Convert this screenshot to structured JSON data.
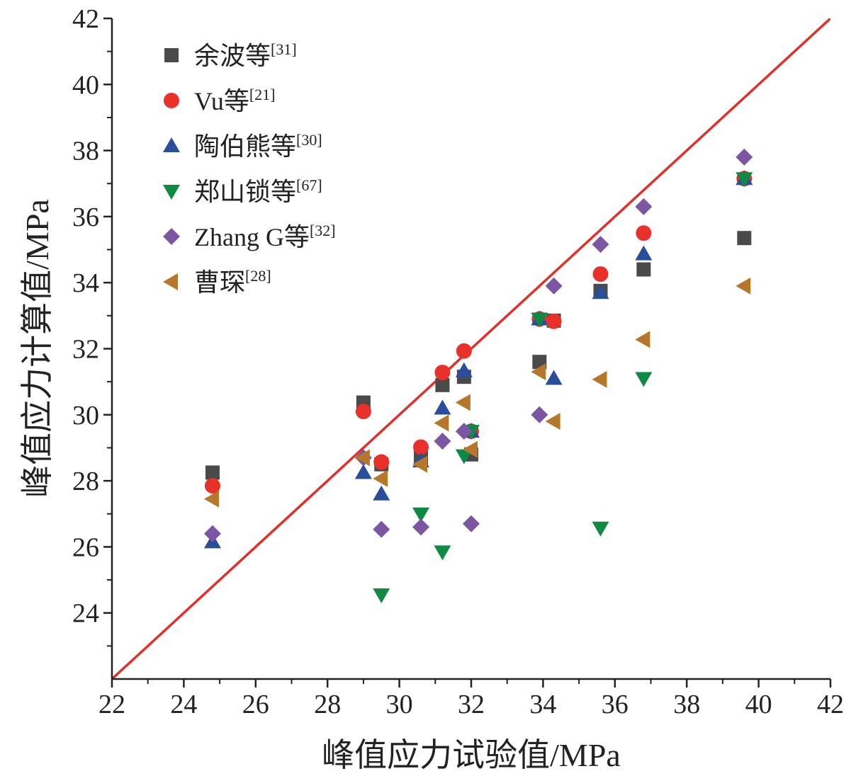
{
  "chart_data": {
    "type": "scatter",
    "xlabel": "峰值应力试验值/MPa",
    "ylabel": "峰值应力计算值/MPa",
    "xlim": [
      22,
      42
    ],
    "ylim": [
      22,
      42
    ],
    "xticks": [
      22,
      24,
      26,
      28,
      30,
      32,
      34,
      36,
      38,
      40,
      42
    ],
    "yticks": [
      24,
      26,
      28,
      30,
      32,
      34,
      36,
      38,
      40,
      42
    ],
    "grid": false,
    "legend_position": "top-left",
    "reference_line": {
      "type": "y=x",
      "color": "#e0302a"
    },
    "series": [
      {
        "name": "余波等",
        "ref": "[31]",
        "marker": "square",
        "color": "#4a4a4a",
        "x": [
          24.8,
          29.0,
          29.5,
          30.6,
          31.2,
          31.8,
          32.0,
          33.9,
          34.3,
          35.6,
          36.8,
          39.6
        ],
        "y": [
          28.25,
          30.37,
          28.5,
          28.7,
          30.9,
          31.15,
          28.8,
          31.6,
          32.85,
          33.75,
          34.4,
          35.35
        ]
      },
      {
        "name": "Vu等",
        "ref": "[21]",
        "marker": "circle",
        "color": "#e8312a",
        "x": [
          24.8,
          29.0,
          29.5,
          30.6,
          31.2,
          31.8,
          32.0,
          33.9,
          34.3,
          35.6,
          36.8,
          39.6
        ],
        "y": [
          27.85,
          30.1,
          28.57,
          29.02,
          31.28,
          31.93,
          29.5,
          32.9,
          32.83,
          34.26,
          35.5,
          37.15
        ]
      },
      {
        "name": "陶伯熊等",
        "ref": "[30]",
        "marker": "triangle-up",
        "color": "#2a4f9a",
        "x": [
          24.8,
          29.0,
          29.5,
          30.6,
          31.2,
          31.8,
          32.0,
          33.9,
          34.3,
          35.6,
          36.8,
          39.6
        ],
        "y": [
          26.15,
          28.25,
          27.6,
          28.6,
          30.2,
          31.33,
          29.5,
          32.9,
          31.1,
          33.7,
          34.87,
          37.15
        ]
      },
      {
        "name": "郑山锁等",
        "ref": "[67]",
        "marker": "triangle-down",
        "color": "#0f8a45",
        "x": [
          29.5,
          30.6,
          31.2,
          31.8,
          32.0,
          33.9,
          35.6,
          36.8,
          39.6
        ],
        "y": [
          24.55,
          27.0,
          25.85,
          28.76,
          29.5,
          32.9,
          26.57,
          31.1,
          37.15
        ]
      },
      {
        "name": "Zhang G等",
        "ref": "[32]",
        "marker": "diamond",
        "color": "#7b56a3",
        "x": [
          24.8,
          29.0,
          29.5,
          30.6,
          31.2,
          31.8,
          32.0,
          33.9,
          34.3,
          35.6,
          36.8,
          39.6
        ],
        "y": [
          26.4,
          28.7,
          26.53,
          26.6,
          29.2,
          29.5,
          26.7,
          30.0,
          33.9,
          35.16,
          36.3,
          37.8
        ]
      },
      {
        "name": "曹琛",
        "ref": "[28]",
        "marker": "triangle-left",
        "color": "#b5782a",
        "x": [
          24.8,
          29.0,
          29.5,
          30.6,
          31.2,
          31.8,
          32.0,
          33.9,
          34.3,
          35.6,
          36.8,
          39.6
        ],
        "y": [
          27.45,
          28.7,
          28.07,
          28.5,
          29.75,
          30.37,
          28.95,
          31.3,
          29.8,
          31.07,
          32.28,
          33.9
        ]
      }
    ]
  }
}
